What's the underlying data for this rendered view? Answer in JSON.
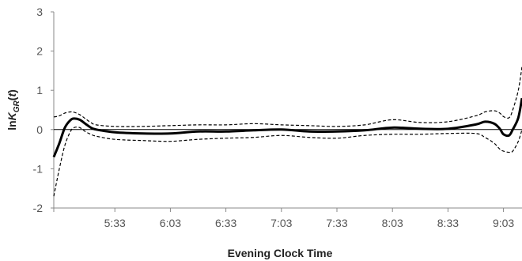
{
  "chart_data": {
    "type": "line",
    "xlabel": "Evening Clock Time",
    "ylabel": "lnK_GR(t)",
    "ylabel_parts": {
      "main": "ln",
      "italic_sub_base": "K",
      "sub": "GR",
      "tail": "(",
      "arg": "t",
      "close": ")"
    },
    "ylim": [
      -2,
      3
    ],
    "y_ticks": [
      "-2",
      "-1",
      "0",
      "1",
      "2",
      "3"
    ],
    "xlim_minutes": [
      1020,
      1273
    ],
    "x_ticks": [
      {
        "label": "5:33",
        "minutes": 1053
      },
      {
        "label": "6:03",
        "minutes": 1083
      },
      {
        "label": "6:33",
        "minutes": 1113
      },
      {
        "label": "7:03",
        "minutes": 1143
      },
      {
        "label": "7:33",
        "minutes": 1173
      },
      {
        "label": "8:03",
        "minutes": 1203
      },
      {
        "label": "8:33",
        "minutes": 1233
      },
      {
        "label": "9:03",
        "minutes": 1263
      }
    ],
    "reference_line_y": 0,
    "series": [
      {
        "style": "solid-thick",
        "x": [
          1020,
          1023,
          1026,
          1029,
          1031,
          1034,
          1037,
          1040,
          1043,
          1053,
          1068,
          1083,
          1098,
          1113,
          1128,
          1143,
          1158,
          1173,
          1188,
          1203,
          1218,
          1233,
          1248,
          1253,
          1258,
          1261,
          1263,
          1266,
          1268,
          1271,
          1273
        ],
        "y": [
          -0.7,
          -0.35,
          0.05,
          0.24,
          0.28,
          0.25,
          0.15,
          0.05,
          0.0,
          -0.07,
          -0.1,
          -0.1,
          -0.05,
          -0.05,
          -0.02,
          0.0,
          -0.05,
          -0.05,
          -0.02,
          0.05,
          0.02,
          0.02,
          0.13,
          0.2,
          0.15,
          0.02,
          -0.12,
          -0.15,
          0.0,
          0.3,
          0.8
        ]
      },
      {
        "style": "dashed-upper",
        "x": [
          1020,
          1023,
          1026,
          1029,
          1031,
          1034,
          1037,
          1040,
          1043,
          1053,
          1068,
          1083,
          1098,
          1113,
          1128,
          1143,
          1158,
          1173,
          1188,
          1203,
          1218,
          1233,
          1248,
          1253,
          1258,
          1261,
          1263,
          1266,
          1268,
          1271,
          1273
        ],
        "y": [
          0.32,
          0.35,
          0.42,
          0.45,
          0.44,
          0.38,
          0.28,
          0.18,
          0.12,
          0.08,
          0.08,
          0.1,
          0.12,
          0.12,
          0.15,
          0.12,
          0.1,
          0.08,
          0.12,
          0.25,
          0.18,
          0.2,
          0.35,
          0.45,
          0.48,
          0.42,
          0.33,
          0.3,
          0.5,
          1.0,
          1.6
        ]
      },
      {
        "style": "dashed-lower",
        "x": [
          1020,
          1023,
          1026,
          1029,
          1031,
          1034,
          1037,
          1040,
          1043,
          1053,
          1068,
          1083,
          1098,
          1113,
          1128,
          1143,
          1158,
          1173,
          1188,
          1203,
          1218,
          1233,
          1248,
          1253,
          1258,
          1261,
          1263,
          1266,
          1268,
          1271,
          1273
        ],
        "y": [
          -1.7,
          -1.0,
          -0.4,
          -0.05,
          0.05,
          0.05,
          -0.05,
          -0.12,
          -0.17,
          -0.25,
          -0.28,
          -0.3,
          -0.25,
          -0.22,
          -0.2,
          -0.15,
          -0.2,
          -0.22,
          -0.15,
          -0.12,
          -0.12,
          -0.1,
          -0.1,
          -0.2,
          -0.35,
          -0.5,
          -0.55,
          -0.58,
          -0.55,
          -0.3,
          0.0
        ]
      }
    ],
    "grid": false,
    "legend": "none"
  }
}
